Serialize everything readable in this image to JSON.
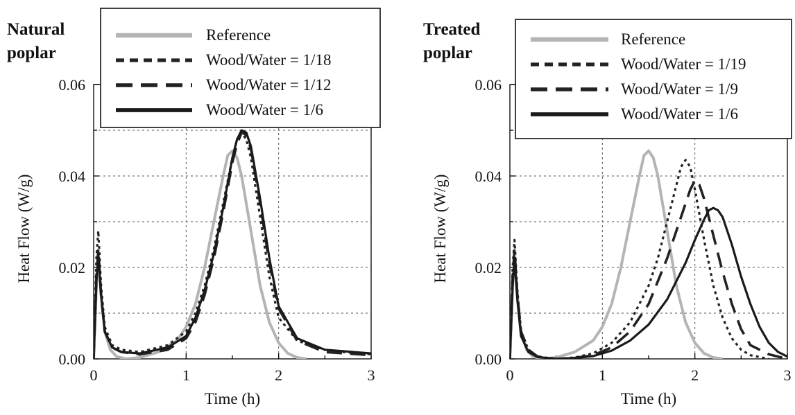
{
  "chart_data": [
    {
      "type": "line",
      "title": "Natural\npoplar",
      "xlabel": "Time (h)",
      "ylabel": "Heat Flow (W/g)",
      "xlim": [
        0,
        3
      ],
      "ylim": [
        0,
        0.06
      ],
      "xticks": [
        "0",
        "1",
        "2",
        "3"
      ],
      "yticks": [
        "0.00",
        "0.02",
        "0.04",
        "0.06"
      ],
      "grid": true,
      "legend_position": "top-right",
      "series": [
        {
          "name": "Reference",
          "color": "#b4b4b4",
          "dash": "solid",
          "width": 4,
          "x": [
            0,
            0.03,
            0.05,
            0.08,
            0.12,
            0.18,
            0.25,
            0.35,
            0.5,
            0.7,
            0.9,
            1.0,
            1.1,
            1.2,
            1.3,
            1.4,
            1.45,
            1.5,
            1.55,
            1.6,
            1.7,
            1.8,
            1.9,
            2.0,
            2.1,
            2.2,
            2.3
          ],
          "y": [
            0,
            0.016,
            0.022,
            0.014,
            0.006,
            0.002,
            0.0005,
            0,
            0.0003,
            0.0015,
            0.004,
            0.007,
            0.012,
            0.02,
            0.03,
            0.04,
            0.0445,
            0.0455,
            0.044,
            0.04,
            0.028,
            0.016,
            0.008,
            0.0035,
            0.0012,
            0.0003,
            0
          ]
        },
        {
          "name": "Wood/Water = 1/18",
          "color": "#222222",
          "dash": "dotted",
          "width": 3.2,
          "x": [
            0,
            0.03,
            0.05,
            0.08,
            0.12,
            0.2,
            0.3,
            0.5,
            0.8,
            1.0,
            1.1,
            1.2,
            1.3,
            1.4,
            1.5,
            1.55,
            1.6,
            1.65,
            1.7,
            1.8,
            1.9,
            2.0,
            2.2,
            2.5,
            2.7,
            3.0
          ],
          "y": [
            0,
            0.022,
            0.028,
            0.016,
            0.007,
            0.003,
            0.002,
            0.0015,
            0.003,
            0.006,
            0.01,
            0.016,
            0.024,
            0.034,
            0.044,
            0.048,
            0.0495,
            0.048,
            0.044,
            0.031,
            0.018,
            0.009,
            0.004,
            0.002,
            0.0015,
            0.001
          ]
        },
        {
          "name": "Wood/Water = 1/12",
          "color": "#222222",
          "dash": "dashed",
          "width": 3.6,
          "x": [
            0,
            0.03,
            0.05,
            0.08,
            0.12,
            0.2,
            0.3,
            0.5,
            0.8,
            1.0,
            1.1,
            1.2,
            1.3,
            1.4,
            1.5,
            1.55,
            1.6,
            1.65,
            1.7,
            1.8,
            1.9,
            2.0,
            2.2,
            2.5,
            3.0
          ],
          "y": [
            0,
            0.018,
            0.024,
            0.014,
            0.006,
            0.0025,
            0.0015,
            0.001,
            0.002,
            0.0045,
            0.008,
            0.014,
            0.022,
            0.032,
            0.043,
            0.047,
            0.0495,
            0.049,
            0.046,
            0.034,
            0.021,
            0.011,
            0.004,
            0.0015,
            0.0008
          ]
        },
        {
          "name": "Wood/Water = 1/6",
          "color": "#1a1a1a",
          "dash": "solid",
          "width": 3.2,
          "x": [
            0,
            0.03,
            0.05,
            0.08,
            0.12,
            0.2,
            0.3,
            0.5,
            0.8,
            1.0,
            1.1,
            1.2,
            1.3,
            1.4,
            1.5,
            1.55,
            1.6,
            1.65,
            1.7,
            1.8,
            1.9,
            2.0,
            2.2,
            2.5,
            3.0
          ],
          "y": [
            0,
            0.017,
            0.023,
            0.014,
            0.006,
            0.0025,
            0.0015,
            0.0012,
            0.0025,
            0.005,
            0.009,
            0.015,
            0.023,
            0.033,
            0.044,
            0.048,
            0.05,
            0.0495,
            0.0465,
            0.035,
            0.022,
            0.0115,
            0.0045,
            0.002,
            0.0012
          ]
        }
      ]
    },
    {
      "type": "line",
      "title": "Treated\npoplar",
      "xlabel": "Time (h)",
      "ylabel": "Heat Flow (W/g)",
      "xlim": [
        0,
        3
      ],
      "ylim": [
        0,
        0.06
      ],
      "xticks": [
        "0",
        "1",
        "2",
        "3"
      ],
      "yticks": [
        "0.00",
        "0.02",
        "0.04",
        "0.06"
      ],
      "grid": true,
      "legend_position": "top-right",
      "series": [
        {
          "name": "Reference",
          "color": "#b4b4b4",
          "dash": "solid",
          "width": 4,
          "x": [
            0,
            0.03,
            0.05,
            0.08,
            0.12,
            0.18,
            0.25,
            0.35,
            0.5,
            0.7,
            0.9,
            1.0,
            1.1,
            1.2,
            1.3,
            1.4,
            1.45,
            1.5,
            1.55,
            1.6,
            1.7,
            1.8,
            1.9,
            2.0,
            2.1,
            2.2,
            2.3
          ],
          "y": [
            0,
            0.016,
            0.022,
            0.014,
            0.006,
            0.002,
            0.0005,
            0,
            0.0003,
            0.0015,
            0.004,
            0.007,
            0.012,
            0.02,
            0.03,
            0.04,
            0.0445,
            0.0455,
            0.044,
            0.04,
            0.028,
            0.016,
            0.008,
            0.0035,
            0.0012,
            0.0003,
            0
          ]
        },
        {
          "name": "Wood/Water = 1/19",
          "color": "#222222",
          "dash": "dotted",
          "width": 3.2,
          "x": [
            0,
            0.03,
            0.05,
            0.08,
            0.12,
            0.2,
            0.3,
            0.5,
            0.7,
            0.9,
            1.1,
            1.3,
            1.5,
            1.6,
            1.7,
            1.8,
            1.85,
            1.9,
            1.95,
            2.0,
            2.1,
            2.2,
            2.3,
            2.4,
            2.5,
            2.6,
            2.8
          ],
          "y": [
            0,
            0.02,
            0.026,
            0.015,
            0.006,
            0.002,
            0.0005,
            0,
            0.0003,
            0.0012,
            0.0035,
            0.008,
            0.016,
            0.022,
            0.03,
            0.038,
            0.042,
            0.0435,
            0.042,
            0.037,
            0.026,
            0.016,
            0.009,
            0.0045,
            0.002,
            0.0008,
            0
          ]
        },
        {
          "name": "Wood/Water = 1/9",
          "color": "#222222",
          "dash": "dashed",
          "width": 3.6,
          "x": [
            0,
            0.03,
            0.05,
            0.08,
            0.12,
            0.2,
            0.3,
            0.5,
            0.7,
            0.9,
            1.1,
            1.3,
            1.5,
            1.7,
            1.8,
            1.9,
            1.95,
            2.0,
            2.05,
            2.1,
            2.2,
            2.3,
            2.4,
            2.5,
            2.6,
            2.8,
            3.0
          ],
          "y": [
            0,
            0.018,
            0.024,
            0.014,
            0.006,
            0.002,
            0.0005,
            0,
            0.0002,
            0.0008,
            0.0025,
            0.006,
            0.012,
            0.022,
            0.028,
            0.034,
            0.037,
            0.039,
            0.038,
            0.035,
            0.027,
            0.019,
            0.012,
            0.0065,
            0.003,
            0.001,
            0
          ]
        },
        {
          "name": "Wood/Water = 1/6",
          "color": "#1a1a1a",
          "dash": "solid",
          "width": 3.2,
          "x": [
            0,
            0.03,
            0.05,
            0.08,
            0.12,
            0.2,
            0.3,
            0.5,
            0.7,
            0.9,
            1.1,
            1.3,
            1.5,
            1.7,
            1.9,
            2.0,
            2.1,
            2.15,
            2.2,
            2.25,
            2.3,
            2.4,
            2.5,
            2.6,
            2.7,
            2.8,
            2.9,
            3.0
          ],
          "y": [
            0,
            0.016,
            0.022,
            0.013,
            0.005,
            0.0015,
            0.0004,
            0,
            0.0002,
            0.0006,
            0.0018,
            0.004,
            0.0075,
            0.013,
            0.021,
            0.026,
            0.0305,
            0.0325,
            0.033,
            0.0325,
            0.031,
            0.025,
            0.018,
            0.012,
            0.007,
            0.0035,
            0.0015,
            0.0005
          ]
        }
      ]
    }
  ]
}
